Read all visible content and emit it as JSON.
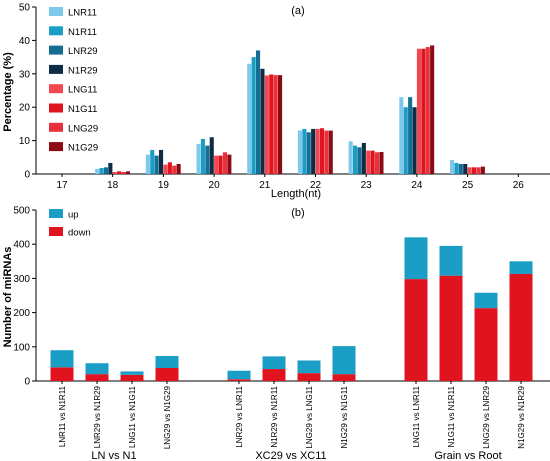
{
  "chart_data": [
    {
      "panel_label": "(a)",
      "type": "bar",
      "xlabel": "Length(nt)",
      "ylabel": "Percentage (%)",
      "ylim": [
        0,
        50
      ],
      "yticks": [
        0,
        10,
        20,
        30,
        40,
        50
      ],
      "categories": [
        "17",
        "18",
        "19",
        "20",
        "21",
        "22",
        "23",
        "24",
        "25",
        "26"
      ],
      "legend_position": "top-left",
      "series": [
        {
          "name": "LNR11",
          "color": "#7ec8ec",
          "values": [
            0,
            1.5,
            5.8,
            9.0,
            33.0,
            13.0,
            9.8,
            23.0,
            4.2,
            0
          ]
        },
        {
          "name": "N1R11",
          "color": "#1a9ec6",
          "values": [
            0,
            1.8,
            7.2,
            10.5,
            35.0,
            13.5,
            8.5,
            20.0,
            3.3,
            0
          ]
        },
        {
          "name": "LNR29",
          "color": "#156f95",
          "values": [
            0,
            2.0,
            5.5,
            8.5,
            37.0,
            12.5,
            8.0,
            23.0,
            3.0,
            0
          ]
        },
        {
          "name": "N1R29",
          "color": "#0d2d45",
          "values": [
            0,
            3.3,
            7.2,
            11.0,
            31.5,
            13.5,
            9.3,
            20.0,
            3.0,
            0
          ]
        },
        {
          "name": "LNG11",
          "color": "#f2474e",
          "values": [
            0,
            0.6,
            2.8,
            5.5,
            29.5,
            13.5,
            7.0,
            37.5,
            2.0,
            0
          ]
        },
        {
          "name": "N1G11",
          "color": "#e0141e",
          "values": [
            0,
            0.8,
            3.5,
            5.5,
            29.8,
            13.7,
            7.0,
            37.5,
            2.0,
            0
          ]
        },
        {
          "name": "LNG29",
          "color": "#e8313a",
          "values": [
            0,
            0.6,
            2.5,
            6.5,
            29.6,
            13.0,
            6.5,
            38.0,
            2.0,
            0
          ]
        },
        {
          "name": "N1G29",
          "color": "#8c0a14",
          "values": [
            0,
            0.8,
            3.0,
            5.8,
            29.6,
            13.0,
            6.6,
            38.5,
            2.2,
            0
          ]
        }
      ]
    },
    {
      "panel_label": "(b)",
      "type": "bar",
      "stacked": true,
      "ylabel": "Number of miRNAs",
      "ylim": [
        0,
        500
      ],
      "yticks": [
        0,
        100,
        200,
        300,
        400,
        500
      ],
      "legend_position": "top-left",
      "groups": [
        {
          "label": "LN vs N1",
          "categories": [
            "LNR11 vs N1R11",
            "LNR29 vs N1R29",
            "LNG11 vs N1G11",
            "LNG29 vs N1G29"
          ]
        },
        {
          "label": "XC29 vs XC11",
          "categories": [
            "LNR29 vs LNR11",
            "N1R29 vs N1R11",
            "LNG29 vs LNG11",
            "N1G29 vs N1G11"
          ]
        },
        {
          "label": "Grain vs Root",
          "categories": [
            "LNG11 vs LNR11",
            "N1G11 vs N1R11",
            "LNG29 vs LNR29",
            "N1G29 vs N1R29"
          ]
        }
      ],
      "series": [
        {
          "name": "down",
          "color": "#e0141e",
          "values": [
            40,
            20,
            18,
            38,
            5,
            35,
            23,
            20,
            298,
            308,
            213,
            313
          ]
        },
        {
          "name": "up",
          "color": "#1a9ec6",
          "values": [
            50,
            32,
            10,
            35,
            25,
            37,
            37,
            82,
            122,
            87,
            45,
            37
          ]
        }
      ]
    }
  ]
}
